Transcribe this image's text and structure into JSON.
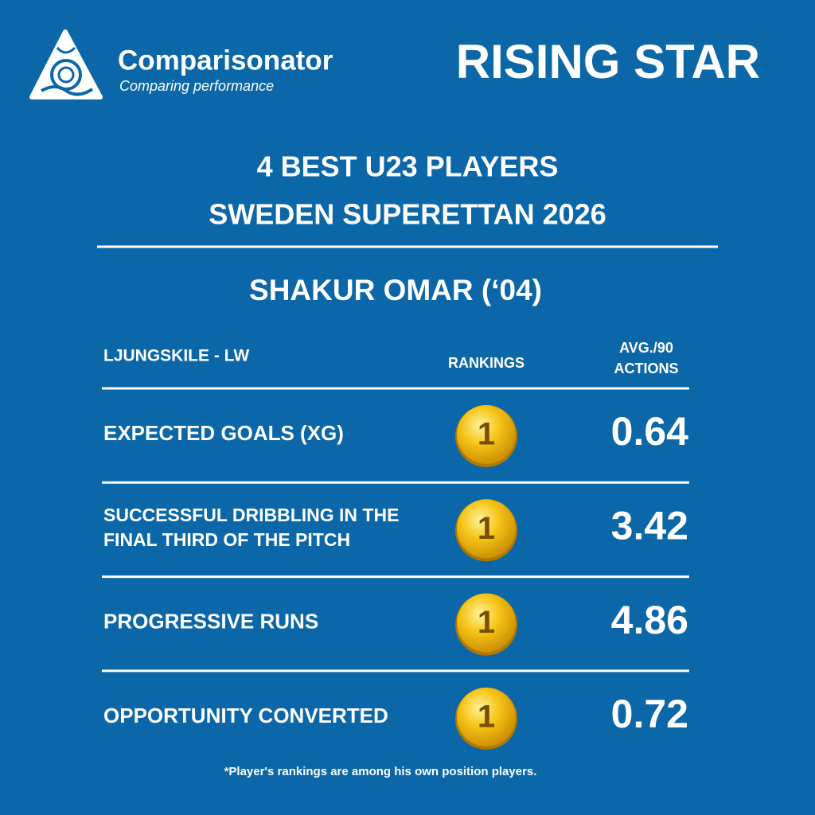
{
  "brand": {
    "name": "Comparisonator",
    "tagline": "Comparing performance"
  },
  "badge": "RISING STAR",
  "title": [
    "4 BEST U23 PLAYERS",
    "SWEDEN SUPERETTAN 2026"
  ],
  "player": "SHAKUR OMAR (‘04)",
  "table": {
    "team": "LJUNGSKILE - LW",
    "rankings_header": "RANKINGS",
    "value_header": [
      "AVG./90",
      "ACTIONS"
    ],
    "rows": [
      {
        "metric": [
          "EXPECTED GOALS (XG)"
        ],
        "rank": 1,
        "value": 0.64
      },
      {
        "metric": [
          "SUCCESSFUL DRIBBLING IN THE",
          "FINAL THIRD OF THE PITCH"
        ],
        "rank": 1,
        "value": 3.42
      },
      {
        "metric": [
          "PROGRESSIVE RUNS"
        ],
        "rank": 1,
        "value": 4.86
      },
      {
        "metric": [
          "OPPORTUNITY CONVERTED"
        ],
        "rank": 1,
        "value": 0.72
      }
    ]
  },
  "footnote": "*Player's rankings are among his own position players."
}
